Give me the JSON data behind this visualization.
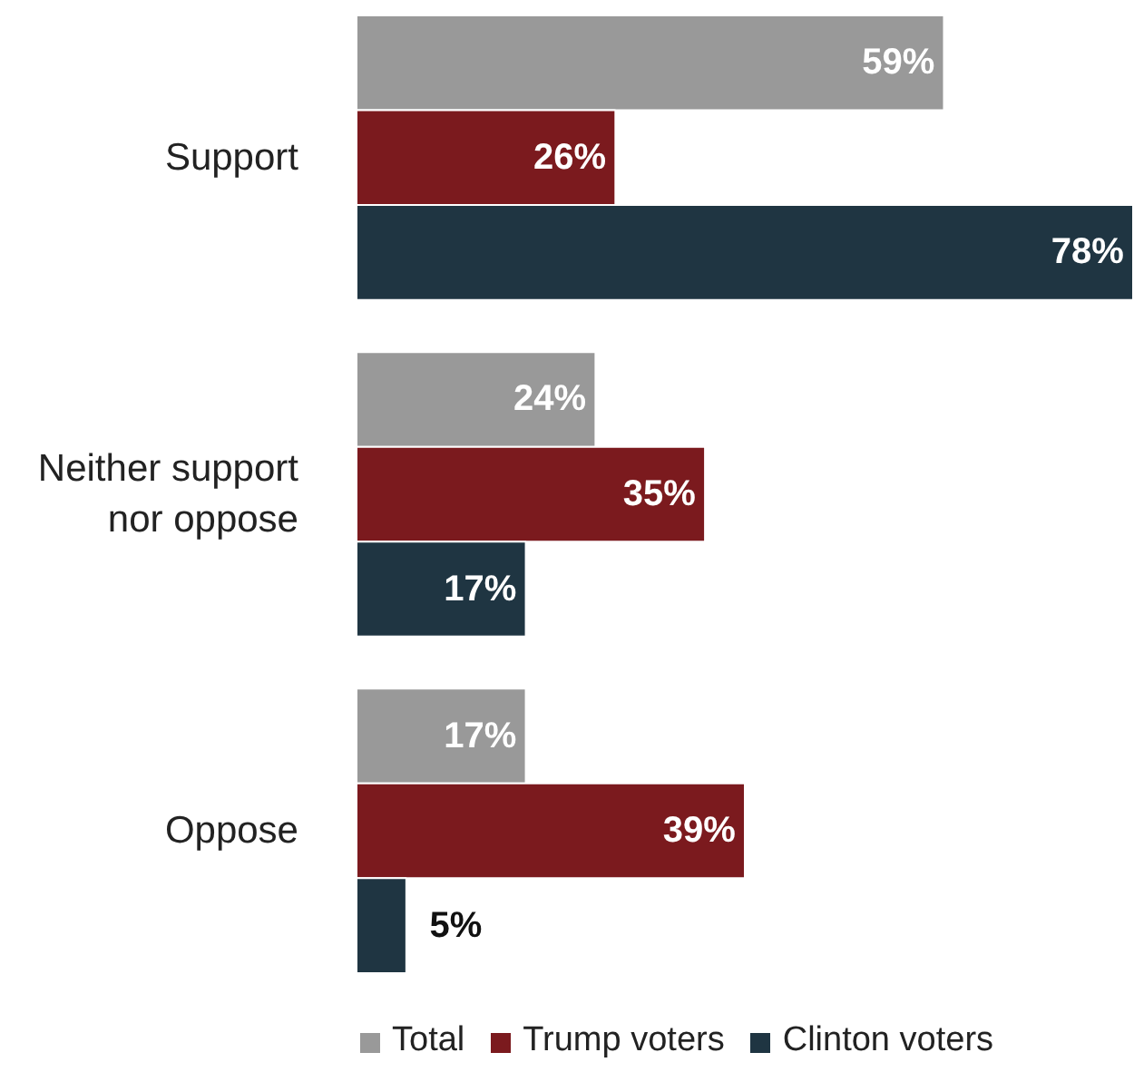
{
  "chart_data": {
    "type": "bar",
    "orientation": "horizontal",
    "categories": [
      "Support",
      "Neither support nor oppose",
      "Oppose"
    ],
    "series": [
      {
        "name": "Total",
        "color": "#999999",
        "values": [
          59,
          24,
          17
        ],
        "value_labels": [
          "59%",
          "24%",
          "17%"
        ]
      },
      {
        "name": "Trump voters",
        "color": "#7b1a1e",
        "values": [
          26,
          35,
          39
        ],
        "value_labels": [
          "26%",
          "35%",
          "39%"
        ]
      },
      {
        "name": "Clinton voters",
        "color": "#1f3542",
        "values": [
          78,
          17,
          5
        ],
        "value_labels": [
          "78%",
          "17%",
          "5%"
        ]
      }
    ],
    "data_labels": true,
    "legend": "bottom",
    "grid": false
  }
}
